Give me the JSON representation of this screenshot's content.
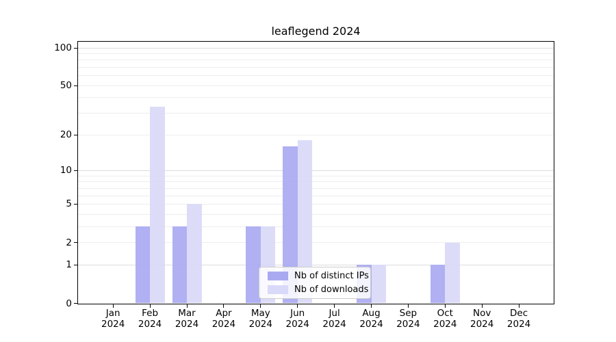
{
  "chart_data": {
    "type": "bar",
    "title": "leaflegend 2024",
    "year": "2024",
    "categories": [
      "Jan",
      "Feb",
      "Mar",
      "Apr",
      "May",
      "Jun",
      "Jul",
      "Aug",
      "Sep",
      "Oct",
      "Nov",
      "Dec"
    ],
    "series": [
      {
        "name": "Nb of distinct IPs",
        "color": "#a9a9f1",
        "values": [
          0,
          3,
          3,
          0,
          3,
          16,
          0,
          1,
          0,
          1,
          0,
          0
        ]
      },
      {
        "name": "Nb of downloads",
        "color": "#d9d9f9",
        "values": [
          0,
          34,
          5,
          0,
          3,
          18,
          0,
          1,
          0,
          2,
          0,
          0
        ]
      }
    ],
    "y_axis": {
      "scale": "log1p",
      "range": [
        0,
        100
      ],
      "tick_labels": [
        100,
        50,
        20,
        10,
        5,
        2,
        1,
        0
      ],
      "major_gridlines": [
        1,
        10,
        100
      ],
      "minor_gridlines": [
        2,
        3,
        4,
        5,
        6,
        7,
        8,
        9,
        20,
        30,
        40,
        50,
        60,
        70,
        80,
        90
      ]
    },
    "x_axis": {
      "label_line2": "2024"
    },
    "legend": {
      "position": "lower-center-inside"
    },
    "grid": true
  }
}
